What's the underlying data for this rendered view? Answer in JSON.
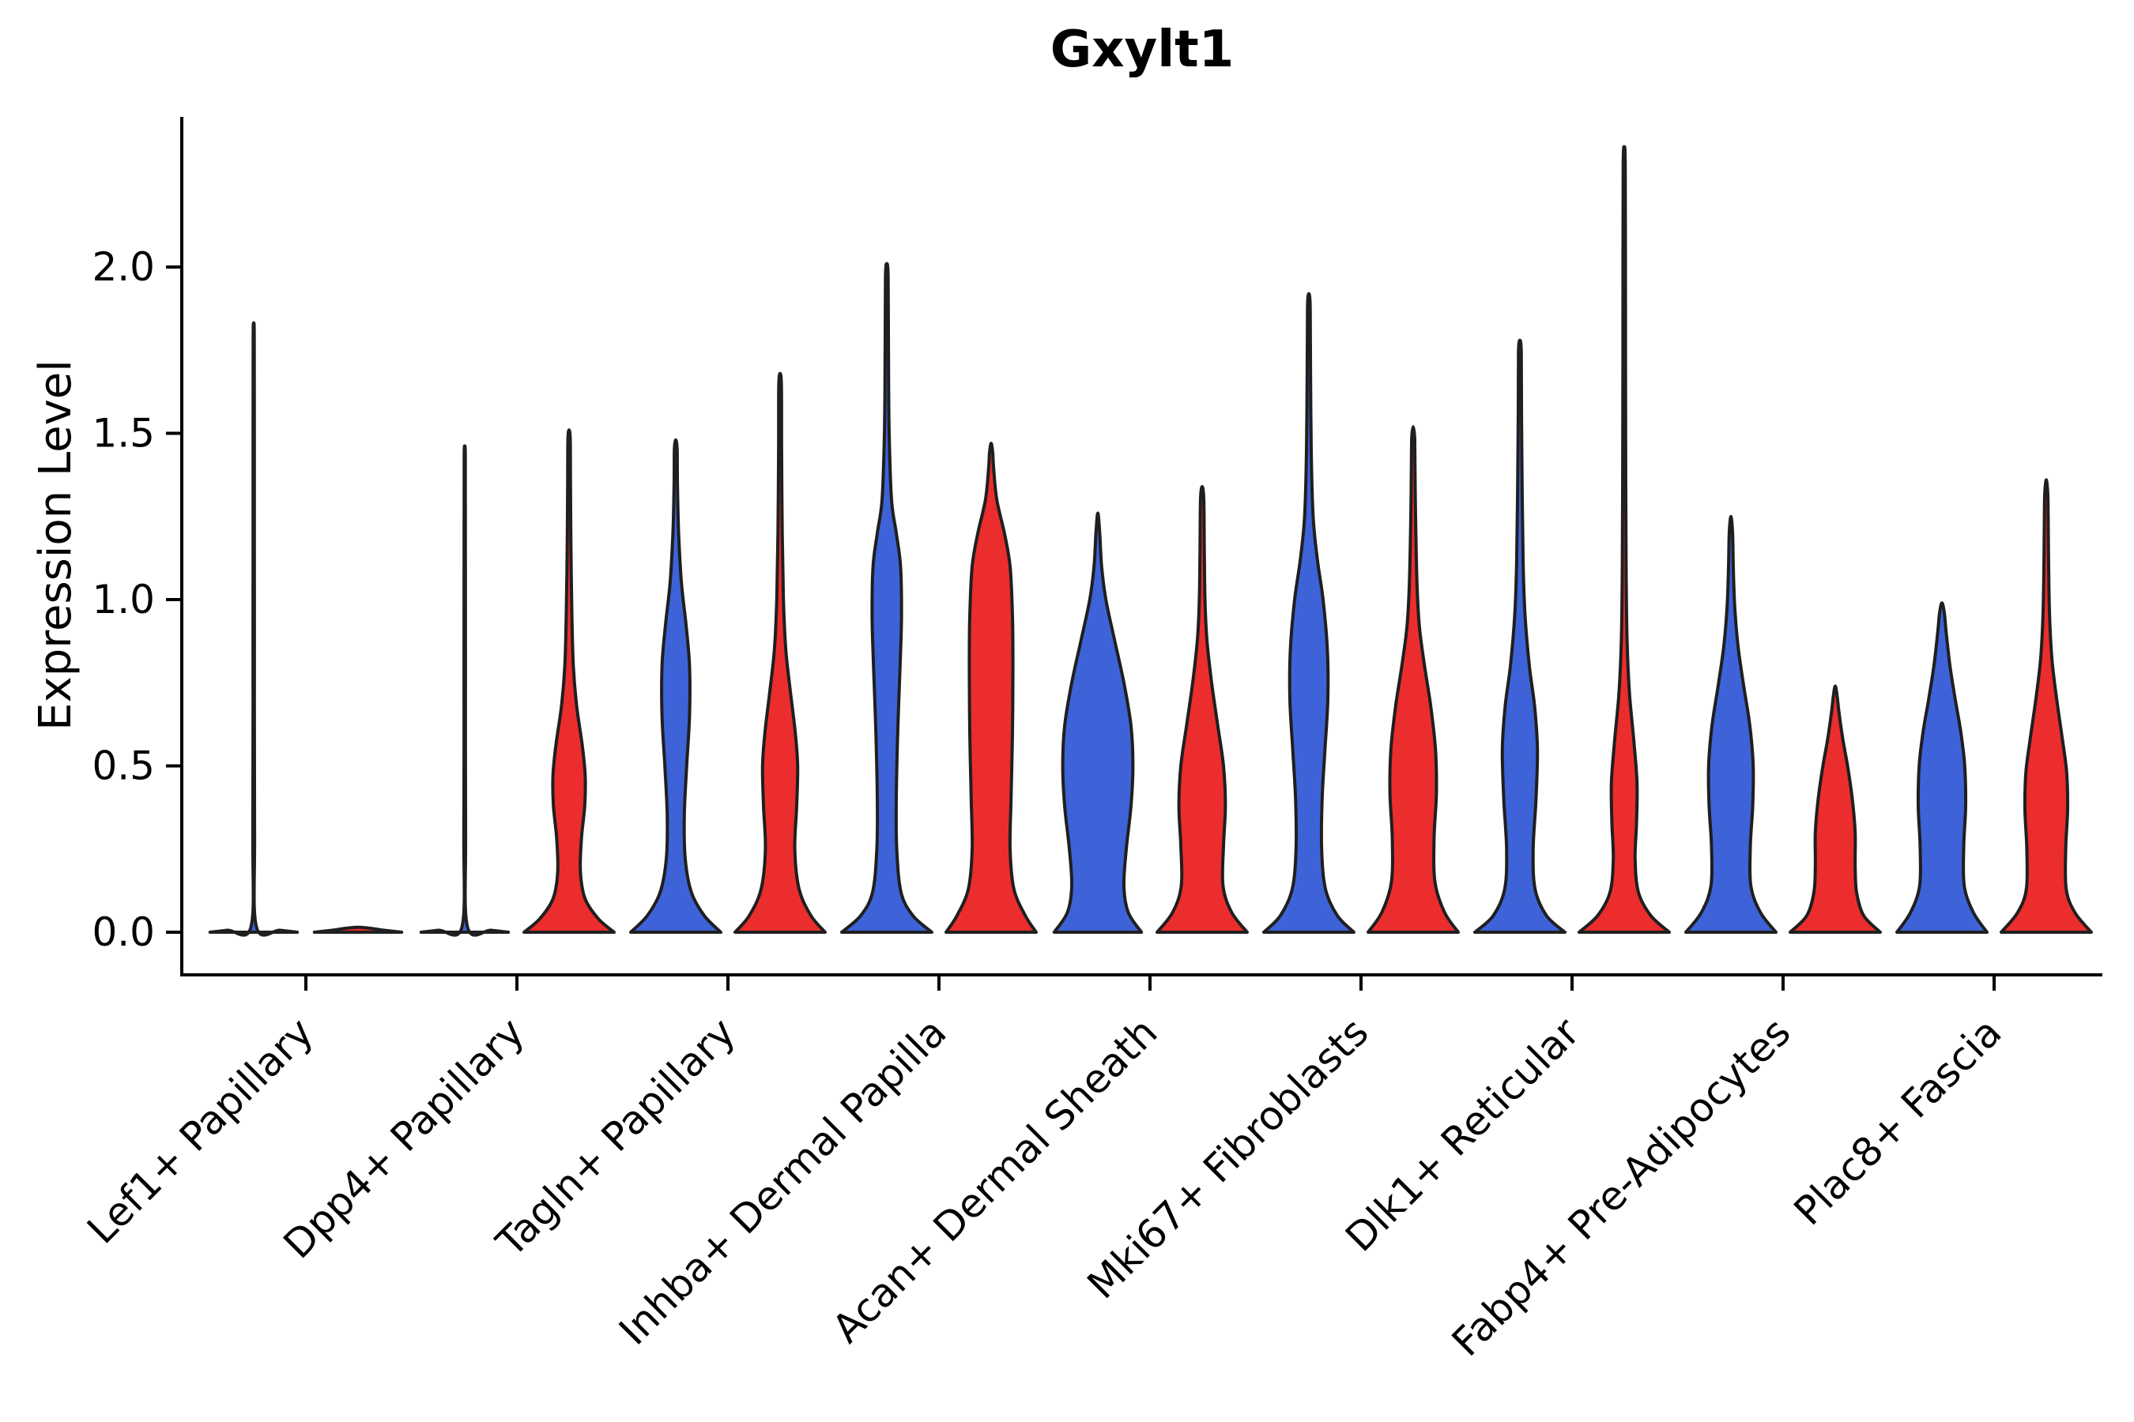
{
  "chart_data": {
    "type": "violin",
    "title": "Gxylt1",
    "ylabel": "Expression Level",
    "xlabel": "",
    "ylim": [
      -0.06,
      2.48
    ],
    "yticks": [
      0.0,
      0.5,
      1.0,
      1.5,
      2.0
    ],
    "ytick_labels": [
      "0.0",
      "0.5",
      "1.0",
      "1.5",
      "2.0"
    ],
    "legend": "none",
    "grid": false,
    "series_colors": {
      "blue": "#3E63D8",
      "red": "#EC2D2D"
    },
    "outline_color": "#1f1f1f",
    "categories": [
      "Lef1+ Papillary",
      "Dpp4+ Papillary",
      "Tagln+ Papillary",
      "Inhba+ Dermal Papilla",
      "Acan+ Dermal Sheath",
      "Mki67+ Fibroblasts",
      "Dlk1+ Reticular",
      "Fabp4+ Pre-Adipocytes",
      "Plac8+ Fascia"
    ],
    "violins": [
      {
        "category": "Lef1+ Papillary",
        "blue": {
          "max_expression": 1.83,
          "profile": [
            [
              0,
              0.92
            ],
            [
              0.006,
              0.55
            ],
            [
              0.015,
              0.06
            ],
            [
              0.3,
              0.018
            ],
            [
              0.9,
              0.015
            ],
            [
              1.5,
              0.013
            ],
            [
              1.79,
              0.012
            ],
            [
              1.83,
              0
            ]
          ]
        },
        "red": {
          "max_expression": 0.0,
          "profile": [
            [
              0,
              0.92
            ],
            [
              0.006,
              0.55
            ],
            [
              0.015,
              0
            ]
          ]
        }
      },
      {
        "category": "Dpp4+ Papillary",
        "blue": {
          "max_expression": 1.46,
          "profile": [
            [
              0,
              0.92
            ],
            [
              0.006,
              0.55
            ],
            [
              0.015,
              0.06
            ],
            [
              0.3,
              0.018
            ],
            [
              0.8,
              0.015
            ],
            [
              1.2,
              0.013
            ],
            [
              1.43,
              0.012
            ],
            [
              1.46,
              0
            ]
          ]
        },
        "red": {
          "max_expression": 1.51,
          "profile": [
            [
              0,
              0.95
            ],
            [
              0.04,
              0.62
            ],
            [
              0.1,
              0.34
            ],
            [
              0.18,
              0.24
            ],
            [
              0.28,
              0.26
            ],
            [
              0.38,
              0.33
            ],
            [
              0.47,
              0.34
            ],
            [
              0.56,
              0.28
            ],
            [
              0.68,
              0.16
            ],
            [
              0.8,
              0.09
            ],
            [
              0.95,
              0.06
            ],
            [
              1.15,
              0.04
            ],
            [
              1.35,
              0.03
            ],
            [
              1.48,
              0.025
            ],
            [
              1.51,
              0
            ]
          ]
        }
      },
      {
        "category": "Tagln+ Papillary",
        "blue": {
          "max_expression": 1.48,
          "profile": [
            [
              0,
              0.95
            ],
            [
              0.05,
              0.6
            ],
            [
              0.12,
              0.33
            ],
            [
              0.22,
              0.2
            ],
            [
              0.35,
              0.18
            ],
            [
              0.5,
              0.23
            ],
            [
              0.65,
              0.29
            ],
            [
              0.8,
              0.29
            ],
            [
              0.92,
              0.22
            ],
            [
              1.05,
              0.12
            ],
            [
              1.2,
              0.06
            ],
            [
              1.35,
              0.035
            ],
            [
              1.45,
              0.03
            ],
            [
              1.48,
              0
            ]
          ]
        },
        "red": {
          "max_expression": 1.68,
          "profile": [
            [
              0,
              0.95
            ],
            [
              0.05,
              0.65
            ],
            [
              0.13,
              0.4
            ],
            [
              0.25,
              0.31
            ],
            [
              0.38,
              0.35
            ],
            [
              0.5,
              0.37
            ],
            [
              0.6,
              0.32
            ],
            [
              0.72,
              0.22
            ],
            [
              0.85,
              0.12
            ],
            [
              1.0,
              0.07
            ],
            [
              1.2,
              0.045
            ],
            [
              1.45,
              0.032
            ],
            [
              1.64,
              0.028
            ],
            [
              1.68,
              0
            ]
          ]
        }
      },
      {
        "category": "Inhba+ Dermal Papilla",
        "blue": {
          "max_expression": 2.01,
          "profile": [
            [
              0,
              0.95
            ],
            [
              0.05,
              0.55
            ],
            [
              0.12,
              0.3
            ],
            [
              0.25,
              0.21
            ],
            [
              0.4,
              0.2
            ],
            [
              0.6,
              0.23
            ],
            [
              0.8,
              0.28
            ],
            [
              0.95,
              0.31
            ],
            [
              1.1,
              0.29
            ],
            [
              1.2,
              0.2
            ],
            [
              1.3,
              0.1
            ],
            [
              1.5,
              0.05
            ],
            [
              1.75,
              0.035
            ],
            [
              1.97,
              0.028
            ],
            [
              2.01,
              0
            ]
          ]
        },
        "red": {
          "max_expression": 1.47,
          "profile": [
            [
              0,
              0.95
            ],
            [
              0.05,
              0.72
            ],
            [
              0.13,
              0.48
            ],
            [
              0.25,
              0.4
            ],
            [
              0.4,
              0.42
            ],
            [
              0.6,
              0.45
            ],
            [
              0.8,
              0.46
            ],
            [
              0.95,
              0.45
            ],
            [
              1.1,
              0.4
            ],
            [
              1.2,
              0.28
            ],
            [
              1.3,
              0.12
            ],
            [
              1.4,
              0.05
            ],
            [
              1.44,
              0.035
            ],
            [
              1.47,
              0
            ]
          ]
        }
      },
      {
        "category": "Acan+ Dermal Sheath",
        "blue": {
          "max_expression": 1.26,
          "profile": [
            [
              0,
              0.92
            ],
            [
              0.06,
              0.64
            ],
            [
              0.14,
              0.55
            ],
            [
              0.25,
              0.6
            ],
            [
              0.38,
              0.7
            ],
            [
              0.5,
              0.74
            ],
            [
              0.62,
              0.7
            ],
            [
              0.75,
              0.55
            ],
            [
              0.88,
              0.35
            ],
            [
              1.0,
              0.17
            ],
            [
              1.1,
              0.08
            ],
            [
              1.2,
              0.04
            ],
            [
              1.26,
              0
            ]
          ]
        },
        "red": {
          "max_expression": 1.34,
          "profile": [
            [
              0,
              0.95
            ],
            [
              0.06,
              0.62
            ],
            [
              0.14,
              0.44
            ],
            [
              0.26,
              0.45
            ],
            [
              0.38,
              0.49
            ],
            [
              0.5,
              0.45
            ],
            [
              0.62,
              0.33
            ],
            [
              0.75,
              0.2
            ],
            [
              0.88,
              0.1
            ],
            [
              1.0,
              0.06
            ],
            [
              1.15,
              0.045
            ],
            [
              1.3,
              0.035
            ],
            [
              1.34,
              0
            ]
          ]
        }
      },
      {
        "category": "Mki67+ Fibroblasts",
        "blue": {
          "max_expression": 1.92,
          "profile": [
            [
              0,
              0.95
            ],
            [
              0.05,
              0.6
            ],
            [
              0.13,
              0.35
            ],
            [
              0.25,
              0.27
            ],
            [
              0.4,
              0.28
            ],
            [
              0.55,
              0.34
            ],
            [
              0.7,
              0.4
            ],
            [
              0.85,
              0.39
            ],
            [
              1.0,
              0.3
            ],
            [
              1.12,
              0.18
            ],
            [
              1.25,
              0.09
            ],
            [
              1.45,
              0.05
            ],
            [
              1.7,
              0.035
            ],
            [
              1.88,
              0.028
            ],
            [
              1.92,
              0
            ]
          ]
        },
        "red": {
          "max_expression": 1.52,
          "profile": [
            [
              0,
              0.95
            ],
            [
              0.06,
              0.66
            ],
            [
              0.15,
              0.46
            ],
            [
              0.28,
              0.44
            ],
            [
              0.42,
              0.49
            ],
            [
              0.55,
              0.47
            ],
            [
              0.68,
              0.37
            ],
            [
              0.8,
              0.24
            ],
            [
              0.92,
              0.13
            ],
            [
              1.05,
              0.08
            ],
            [
              1.25,
              0.05
            ],
            [
              1.45,
              0.035
            ],
            [
              1.49,
              0.03
            ],
            [
              1.52,
              0
            ]
          ]
        }
      },
      {
        "category": "Dlk1+ Reticular",
        "blue": {
          "max_expression": 1.78,
          "profile": [
            [
              0,
              0.95
            ],
            [
              0.05,
              0.56
            ],
            [
              0.13,
              0.32
            ],
            [
              0.25,
              0.28
            ],
            [
              0.4,
              0.34
            ],
            [
              0.55,
              0.37
            ],
            [
              0.68,
              0.31
            ],
            [
              0.8,
              0.2
            ],
            [
              0.95,
              0.11
            ],
            [
              1.1,
              0.07
            ],
            [
              1.3,
              0.05
            ],
            [
              1.55,
              0.035
            ],
            [
              1.74,
              0.03
            ],
            [
              1.78,
              0
            ]
          ]
        },
        "red": {
          "max_expression": 2.36,
          "profile": [
            [
              0,
              0.95
            ],
            [
              0.05,
              0.56
            ],
            [
              0.12,
              0.3
            ],
            [
              0.22,
              0.23
            ],
            [
              0.33,
              0.26
            ],
            [
              0.45,
              0.27
            ],
            [
              0.58,
              0.2
            ],
            [
              0.72,
              0.11
            ],
            [
              0.88,
              0.06
            ],
            [
              1.1,
              0.04
            ],
            [
              1.5,
              0.03
            ],
            [
              1.9,
              0.026
            ],
            [
              2.3,
              0.022
            ],
            [
              2.36,
              0
            ]
          ]
        }
      },
      {
        "category": "Fabp4+ Pre-Adipocytes",
        "blue": {
          "max_expression": 1.25,
          "profile": [
            [
              0,
              0.95
            ],
            [
              0.06,
              0.62
            ],
            [
              0.14,
              0.42
            ],
            [
              0.26,
              0.41
            ],
            [
              0.38,
              0.46
            ],
            [
              0.5,
              0.47
            ],
            [
              0.62,
              0.4
            ],
            [
              0.74,
              0.27
            ],
            [
              0.86,
              0.15
            ],
            [
              0.98,
              0.08
            ],
            [
              1.1,
              0.05
            ],
            [
              1.2,
              0.035
            ],
            [
              1.25,
              0
            ]
          ]
        },
        "red": {
          "max_expression": 0.74,
          "profile": [
            [
              0,
              0.95
            ],
            [
              0.05,
              0.6
            ],
            [
              0.12,
              0.45
            ],
            [
              0.2,
              0.42
            ],
            [
              0.3,
              0.42
            ],
            [
              0.4,
              0.36
            ],
            [
              0.5,
              0.26
            ],
            [
              0.58,
              0.16
            ],
            [
              0.66,
              0.08
            ],
            [
              0.71,
              0.04
            ],
            [
              0.74,
              0
            ]
          ]
        }
      },
      {
        "category": "Plac8+ Fascia",
        "blue": {
          "max_expression": 0.99,
          "profile": [
            [
              0,
              0.95
            ],
            [
              0.06,
              0.66
            ],
            [
              0.14,
              0.47
            ],
            [
              0.26,
              0.46
            ],
            [
              0.38,
              0.5
            ],
            [
              0.5,
              0.48
            ],
            [
              0.6,
              0.4
            ],
            [
              0.7,
              0.28
            ],
            [
              0.8,
              0.17
            ],
            [
              0.9,
              0.09
            ],
            [
              0.96,
              0.05
            ],
            [
              0.99,
              0
            ]
          ]
        },
        "red": {
          "max_expression": 1.36,
          "profile": [
            [
              0,
              0.95
            ],
            [
              0.06,
              0.6
            ],
            [
              0.13,
              0.42
            ],
            [
              0.25,
              0.41
            ],
            [
              0.37,
              0.45
            ],
            [
              0.48,
              0.43
            ],
            [
              0.58,
              0.34
            ],
            [
              0.7,
              0.22
            ],
            [
              0.82,
              0.12
            ],
            [
              0.95,
              0.07
            ],
            [
              1.1,
              0.05
            ],
            [
              1.25,
              0.04
            ],
            [
              1.32,
              0.032
            ],
            [
              1.36,
              0
            ]
          ]
        }
      }
    ]
  }
}
